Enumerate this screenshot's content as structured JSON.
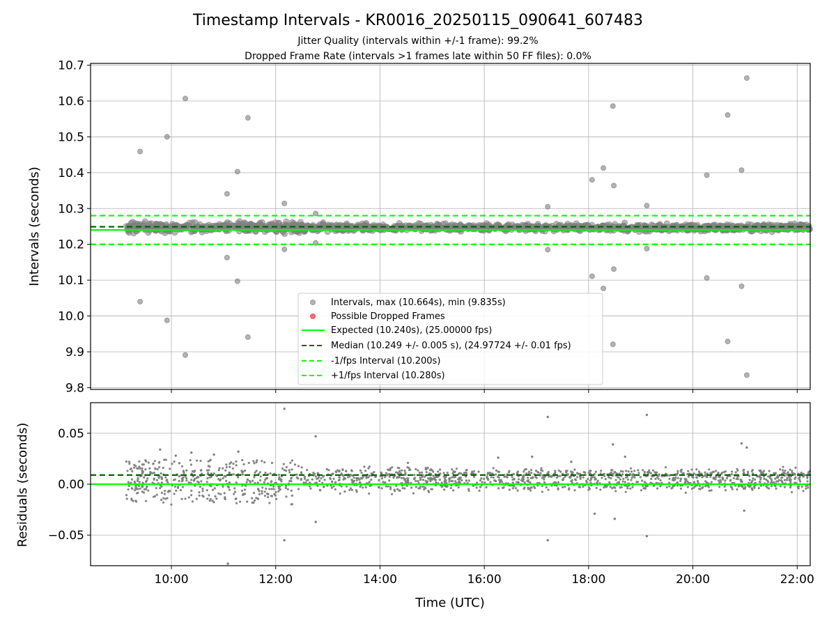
{
  "title": "Timestamp Intervals - KR0016_20250115_090641_607483",
  "subtitle_1": "Jitter Quality (intervals within +/-1 frame): 99.2%",
  "subtitle_2": "Dropped Frame Rate (intervals >1 frames late within 50 FF files): 0.0%",
  "colors": {
    "points": "#808080",
    "dropped": "#ff0000",
    "expected": "#00ff00",
    "median": "#006400",
    "fps_band": "#00ff00",
    "grid": "#b0b0b0"
  },
  "chart_data": [
    {
      "type": "scatter",
      "panel": "top",
      "ylabel": "Intervals (seconds)",
      "ylim": [
        9.795,
        10.705
      ],
      "xlim": [
        "08:27",
        "22:15"
      ],
      "y_ticks": [
        "9.8",
        "9.9",
        "10.0",
        "10.1",
        "10.2",
        "10.3",
        "10.4",
        "10.5",
        "10.6",
        "10.7"
      ],
      "y_tick_values": [
        9.8,
        9.9,
        10.0,
        10.1,
        10.2,
        10.3,
        10.4,
        10.5,
        10.6,
        10.7
      ],
      "grid": true,
      "legend_position": "lower-center",
      "reference_lines": [
        {
          "name": "Expected (10.240s), (25.00000 fps)",
          "y": 10.24,
          "style": "solid",
          "color": "#00ff00"
        },
        {
          "name": "Median (10.249 +/- 0.005 s), (24.97724 +/- 0.01 fps)",
          "y": 10.249,
          "style": "dashed",
          "color": "#006400"
        },
        {
          "name": "-1/fps Interval (10.200s)",
          "y": 10.2,
          "style": "dashed",
          "color": "#00ff00"
        },
        {
          "name": "+1/fps Interval (10.280s)",
          "y": 10.28,
          "style": "dashed",
          "color": "#00ff00"
        }
      ],
      "series": [
        {
          "name": "Intervals, max (10.664s), min (9.835s)",
          "marker": "circle",
          "color": "#808080"
        },
        {
          "name": "Possible Dropped Frames",
          "marker": "circle",
          "color": "#ff0000",
          "count": 0
        }
      ],
      "bulk_band": {
        "x_start": "09:08",
        "x_end": "22:15",
        "y_min": 10.232,
        "y_max": 10.262
      },
      "outliers": [
        {
          "x": "09:24",
          "y": 10.459
        },
        {
          "x": "09:24",
          "y": 10.04
        },
        {
          "x": "09:55",
          "y": 10.5
        },
        {
          "x": "09:55",
          "y": 9.988
        },
        {
          "x": "10:16",
          "y": 10.607
        },
        {
          "x": "10:16",
          "y": 9.891
        },
        {
          "x": "11:04",
          "y": 10.341
        },
        {
          "x": "11:04",
          "y": 10.163
        },
        {
          "x": "11:16",
          "y": 10.403
        },
        {
          "x": "11:16",
          "y": 10.097
        },
        {
          "x": "11:28",
          "y": 10.553
        },
        {
          "x": "11:28",
          "y": 9.941
        },
        {
          "x": "12:10",
          "y": 10.314
        },
        {
          "x": "12:10",
          "y": 10.186
        },
        {
          "x": "12:46",
          "y": 10.286
        },
        {
          "x": "12:46",
          "y": 10.204
        },
        {
          "x": "17:13",
          "y": 10.305
        },
        {
          "x": "17:13",
          "y": 10.185
        },
        {
          "x": "18:04",
          "y": 10.38
        },
        {
          "x": "18:04",
          "y": 10.111
        },
        {
          "x": "18:17",
          "y": 10.413
        },
        {
          "x": "18:17",
          "y": 10.077
        },
        {
          "x": "18:28",
          "y": 10.586
        },
        {
          "x": "18:28",
          "y": 9.921
        },
        {
          "x": "18:29",
          "y": 10.364
        },
        {
          "x": "18:29",
          "y": 10.131
        },
        {
          "x": "19:07",
          "y": 10.308
        },
        {
          "x": "19:07",
          "y": 10.188
        },
        {
          "x": "20:16",
          "y": 10.393
        },
        {
          "x": "20:16",
          "y": 10.106
        },
        {
          "x": "20:40",
          "y": 10.561
        },
        {
          "x": "20:40",
          "y": 9.929
        },
        {
          "x": "20:56",
          "y": 10.407
        },
        {
          "x": "20:56",
          "y": 10.083
        },
        {
          "x": "21:02",
          "y": 10.664
        },
        {
          "x": "21:02",
          "y": 9.835
        }
      ]
    },
    {
      "type": "scatter",
      "panel": "bottom",
      "ylabel": "Residuals (seconds)",
      "xlabel": "Time (UTC)",
      "ylim": [
        -0.08,
        0.08
      ],
      "xlim": [
        "08:27",
        "22:15"
      ],
      "y_ticks": [
        "−0.05",
        "0.00",
        "0.05"
      ],
      "y_tick_values": [
        -0.05,
        0.0,
        0.05
      ],
      "x_ticks": [
        "10:00",
        "12:00",
        "14:00",
        "16:00",
        "18:00",
        "20:00",
        "22:00"
      ],
      "grid": true,
      "reference_lines": [
        {
          "name": "zero",
          "y": 0.0,
          "style": "solid",
          "color": "#00ff00"
        },
        {
          "name": "median offset",
          "y": 0.009,
          "style": "dashed",
          "color": "#006400"
        }
      ],
      "points": [
        {
          "x": "09:47",
          "y": 0.034
        },
        {
          "x": "10:05",
          "y": 0.028
        },
        {
          "x": "10:23",
          "y": 0.031
        },
        {
          "x": "10:49",
          "y": 0.029
        },
        {
          "x": "11:17",
          "y": 0.032
        },
        {
          "x": "12:10",
          "y": 0.074
        },
        {
          "x": "12:46",
          "y": 0.047
        },
        {
          "x": "12:46",
          "y": -0.037
        },
        {
          "x": "12:10",
          "y": -0.055
        },
        {
          "x": "11:05",
          "y": -0.078
        },
        {
          "x": "17:13",
          "y": 0.066
        },
        {
          "x": "17:13",
          "y": -0.055
        },
        {
          "x": "19:07",
          "y": 0.068
        },
        {
          "x": "19:07",
          "y": -0.051
        },
        {
          "x": "18:28",
          "y": 0.039
        },
        {
          "x": "18:30",
          "y": -0.034
        },
        {
          "x": "20:56",
          "y": 0.04
        },
        {
          "x": "21:02",
          "y": 0.036
        },
        {
          "x": "20:59",
          "y": -0.026
        },
        {
          "x": "18:42",
          "y": 0.027
        },
        {
          "x": "18:07",
          "y": -0.029
        },
        {
          "x": "16:16",
          "y": 0.026
        },
        {
          "x": "16:55",
          "y": 0.027
        },
        {
          "x": "17:40",
          "y": 0.022
        }
      ],
      "bulk_band": {
        "x_start": "09:08",
        "x_end": "22:15",
        "y_min": -0.02,
        "y_max": 0.024
      }
    }
  ]
}
